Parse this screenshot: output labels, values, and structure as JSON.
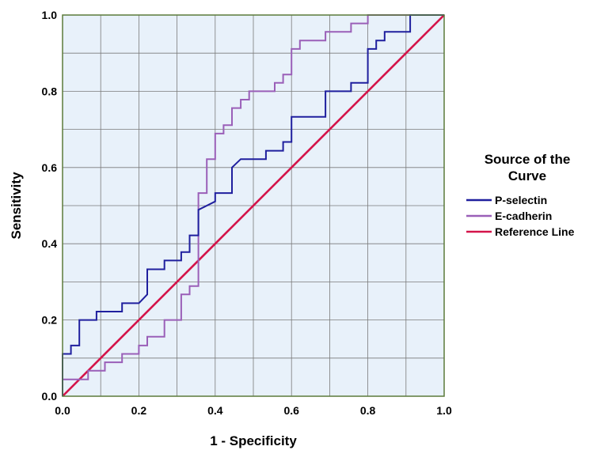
{
  "chart_data": {
    "type": "line",
    "title": "",
    "xlabel": "1 - Specificity",
    "ylabel": "Sensitivity",
    "xlim": [
      0,
      1
    ],
    "ylim": [
      0,
      1
    ],
    "x_ticks": [
      "0.0",
      "0.2",
      "0.4",
      "0.6",
      "0.8",
      "1.0"
    ],
    "y_ticks": [
      "0.0",
      "0.2",
      "0.4",
      "0.6",
      "0.8",
      "1.0"
    ],
    "grid": true,
    "background_color": "#e8f1fa",
    "legend": {
      "title": "Source of the Curve",
      "placement": "right"
    },
    "series": [
      {
        "name": "P-selectin",
        "color": "#1f1f9e",
        "x": [
          0,
          0,
          0.022,
          0.022,
          0.044,
          0.044,
          0.089,
          0.089,
          0.156,
          0.156,
          0.2,
          0.222,
          0.222,
          0.267,
          0.267,
          0.311,
          0.311,
          0.333,
          0.333,
          0.356,
          0.356,
          0.4,
          0.4,
          0.444,
          0.444,
          0.467,
          0.533,
          0.533,
          0.578,
          0.578,
          0.6,
          0.6,
          0.689,
          0.689,
          0.756,
          0.756,
          0.8,
          0.8,
          0.822,
          0.822,
          0.844,
          0.844,
          0.867,
          0.867,
          0.911,
          0.911,
          1.0
        ],
        "y": [
          0,
          0.111,
          0.111,
          0.133,
          0.133,
          0.2,
          0.2,
          0.222,
          0.222,
          0.244,
          0.244,
          0.267,
          0.333,
          0.333,
          0.356,
          0.356,
          0.378,
          0.378,
          0.422,
          0.422,
          0.489,
          0.511,
          0.533,
          0.533,
          0.6,
          0.622,
          0.622,
          0.644,
          0.644,
          0.667,
          0.667,
          0.733,
          0.733,
          0.8,
          0.8,
          0.822,
          0.822,
          0.911,
          0.911,
          0.933,
          0.933,
          0.956,
          0.956,
          0.956,
          0.956,
          1.0,
          1.0
        ]
      },
      {
        "name": "E-cadherin",
        "color": "#9a5fb8",
        "x": [
          0,
          0,
          0.067,
          0.067,
          0.111,
          0.111,
          0.156,
          0.156,
          0.2,
          0.2,
          0.222,
          0.222,
          0.267,
          0.267,
          0.311,
          0.311,
          0.333,
          0.333,
          0.356,
          0.356,
          0.378,
          0.378,
          0.4,
          0.4,
          0.422,
          0.422,
          0.444,
          0.444,
          0.467,
          0.467,
          0.489,
          0.489,
          0.556,
          0.556,
          0.578,
          0.578,
          0.6,
          0.6,
          0.622,
          0.622,
          0.689,
          0.689,
          0.756,
          0.756,
          0.8,
          0.8,
          1.0
        ],
        "y": [
          0,
          0.044,
          0.044,
          0.067,
          0.067,
          0.089,
          0.089,
          0.111,
          0.111,
          0.133,
          0.133,
          0.156,
          0.156,
          0.2,
          0.2,
          0.267,
          0.267,
          0.289,
          0.289,
          0.533,
          0.533,
          0.622,
          0.622,
          0.689,
          0.689,
          0.711,
          0.711,
          0.756,
          0.756,
          0.778,
          0.778,
          0.8,
          0.8,
          0.822,
          0.822,
          0.844,
          0.844,
          0.911,
          0.911,
          0.933,
          0.933,
          0.956,
          0.956,
          0.978,
          0.978,
          1.0,
          1.0
        ]
      },
      {
        "name": "Reference Line",
        "color": "#d4144a",
        "x": [
          0,
          1
        ],
        "y": [
          0,
          1
        ]
      }
    ]
  }
}
